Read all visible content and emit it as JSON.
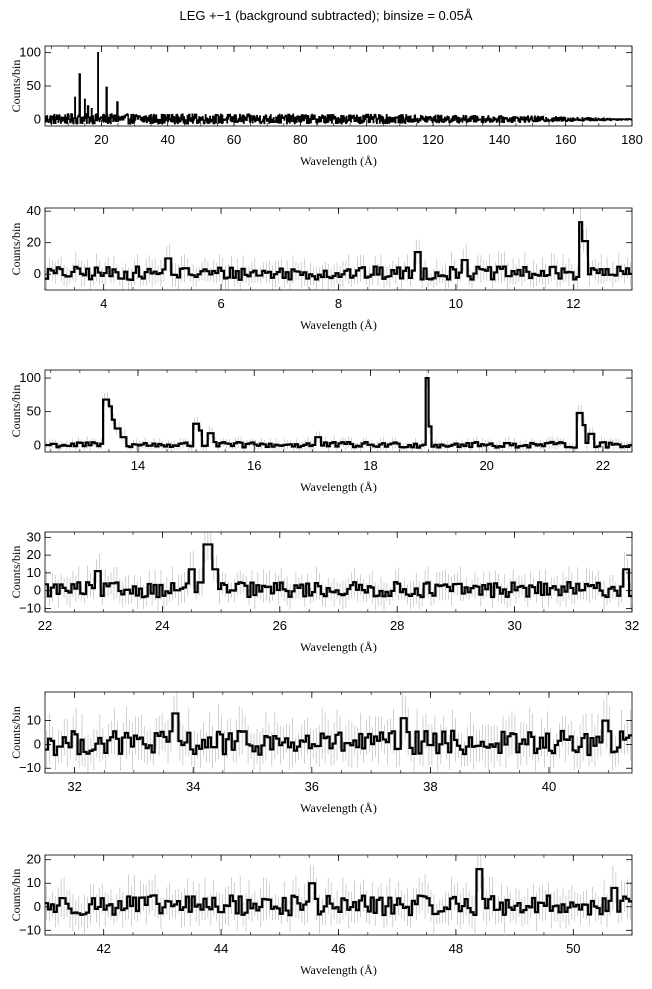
{
  "title": "LEG +−1 (background subtracted); binsize = 0.05Å",
  "chart_data": [
    {
      "type": "line",
      "xlabel": "Wavelength (Å)",
      "ylabel": "Counts/bin",
      "xlim": [
        3,
        180
      ],
      "ylim": [
        -10,
        110
      ],
      "xticks": [
        20,
        40,
        60,
        80,
        100,
        120,
        140,
        160,
        180
      ],
      "xtick_labels": [
        "20",
        "40",
        "60",
        "80",
        "100",
        "120",
        "140",
        "160",
        "180"
      ],
      "yticks": [
        0,
        50,
        100
      ],
      "ytick_labels": [
        "0",
        "50",
        "100"
      ],
      "noise_amp": 9,
      "noise_envelope": [
        [
          3,
          1.0
        ],
        [
          100,
          0.9
        ],
        [
          150,
          0.6
        ],
        [
          175,
          0.2
        ],
        [
          180,
          0.1
        ]
      ],
      "lines": [
        {
          "x": 12.1,
          "y": 33
        },
        {
          "x": 13.45,
          "y": 68
        },
        {
          "x": 15.0,
          "y": 30
        },
        {
          "x": 16.0,
          "y": 20
        },
        {
          "x": 17.1,
          "y": 16
        },
        {
          "x": 19.0,
          "y": 100
        },
        {
          "x": 21.6,
          "y": 48
        },
        {
          "x": 24.8,
          "y": 26
        }
      ]
    },
    {
      "type": "line",
      "xlabel": "Wavelength (Å)",
      "ylabel": "Counts/bin",
      "xlim": [
        3,
        13
      ],
      "ylim": [
        -10,
        42
      ],
      "xticks": [
        4,
        6,
        8,
        10,
        12
      ],
      "xtick_labels": [
        "4",
        "6",
        "8",
        "10",
        "12"
      ],
      "yticks": [
        0,
        20,
        40
      ],
      "ytick_labels": [
        "0",
        "20",
        "40"
      ],
      "noise_amp": 5,
      "lines": [
        {
          "x": 5.1,
          "y": 10
        },
        {
          "x": 9.35,
          "y": 14
        },
        {
          "x": 10.15,
          "y": 9
        },
        {
          "x": 12.13,
          "y": 33
        },
        {
          "x": 12.2,
          "y": 21
        }
      ]
    },
    {
      "type": "line",
      "xlabel": "Wavelength (Å)",
      "ylabel": "Counts/bin",
      "xlim": [
        12.4,
        22.5
      ],
      "ylim": [
        -10,
        112
      ],
      "xticks": [
        14,
        16,
        18,
        20,
        22
      ],
      "xtick_labels": [
        "14",
        "16",
        "18",
        "20",
        "22"
      ],
      "yticks": [
        0,
        50,
        100
      ],
      "ytick_labels": [
        "0",
        "50",
        "100"
      ],
      "noise_amp": 5,
      "lines": [
        {
          "x": 13.45,
          "y": 68
        },
        {
          "x": 13.5,
          "y": 58
        },
        {
          "x": 13.55,
          "y": 38
        },
        {
          "x": 13.65,
          "y": 25
        },
        {
          "x": 13.75,
          "y": 12
        },
        {
          "x": 15.0,
          "y": 32
        },
        {
          "x": 15.05,
          "y": 22
        },
        {
          "x": 15.25,
          "y": 18
        },
        {
          "x": 17.1,
          "y": 12
        },
        {
          "x": 18.97,
          "y": 100
        },
        {
          "x": 19.02,
          "y": 28
        },
        {
          "x": 21.6,
          "y": 48
        },
        {
          "x": 21.65,
          "y": 30
        },
        {
          "x": 21.8,
          "y": 17
        }
      ]
    },
    {
      "type": "line",
      "xlabel": "Wavelength (Å)",
      "ylabel": "Counts/bin",
      "xlim": [
        22,
        32
      ],
      "ylim": [
        -12,
        33
      ],
      "xticks": [
        22,
        24,
        26,
        28,
        30,
        32
      ],
      "xtick_labels": [
        "22",
        "24",
        "26",
        "28",
        "30",
        "32"
      ],
      "yticks": [
        -10,
        0,
        10,
        20,
        30
      ],
      "ytick_labels": [
        "−10",
        "0",
        "10",
        "20",
        "30"
      ],
      "noise_amp": 5,
      "lines": [
        {
          "x": 22.9,
          "y": 11
        },
        {
          "x": 24.5,
          "y": 12
        },
        {
          "x": 24.75,
          "y": 26
        },
        {
          "x": 24.8,
          "y": 26
        },
        {
          "x": 24.9,
          "y": 12
        },
        {
          "x": 31.9,
          "y": 12
        }
      ]
    },
    {
      "type": "line",
      "xlabel": "Wavelength (Å)",
      "ylabel": "Counts/bin",
      "xlim": [
        31.5,
        41.4
      ],
      "ylim": [
        -12,
        22
      ],
      "xticks": [
        32,
        34,
        36,
        38,
        40
      ],
      "xtick_labels": [
        "32",
        "34",
        "36",
        "38",
        "40"
      ],
      "yticks": [
        -10,
        0,
        10
      ],
      "ytick_labels": [
        "−10",
        "0",
        "10"
      ],
      "noise_amp": 6,
      "lines": [
        {
          "x": 33.7,
          "y": 13
        },
        {
          "x": 37.55,
          "y": 11
        },
        {
          "x": 40.95,
          "y": 10
        }
      ]
    },
    {
      "type": "line",
      "xlabel": "Wavelength (Å)",
      "ylabel": "Counts/bin",
      "xlim": [
        41,
        51
      ],
      "ylim": [
        -12,
        22
      ],
      "xticks": [
        42,
        44,
        46,
        48,
        50
      ],
      "xtick_labels": [
        "42",
        "44",
        "46",
        "48",
        "50"
      ],
      "yticks": [
        -10,
        0,
        10,
        20
      ],
      "ytick_labels": [
        "−10",
        "0",
        "10",
        "20"
      ],
      "noise_amp": 5,
      "lines": [
        {
          "x": 45.55,
          "y": 10
        },
        {
          "x": 48.4,
          "y": 16
        },
        {
          "x": 50.7,
          "y": 8
        }
      ]
    }
  ]
}
